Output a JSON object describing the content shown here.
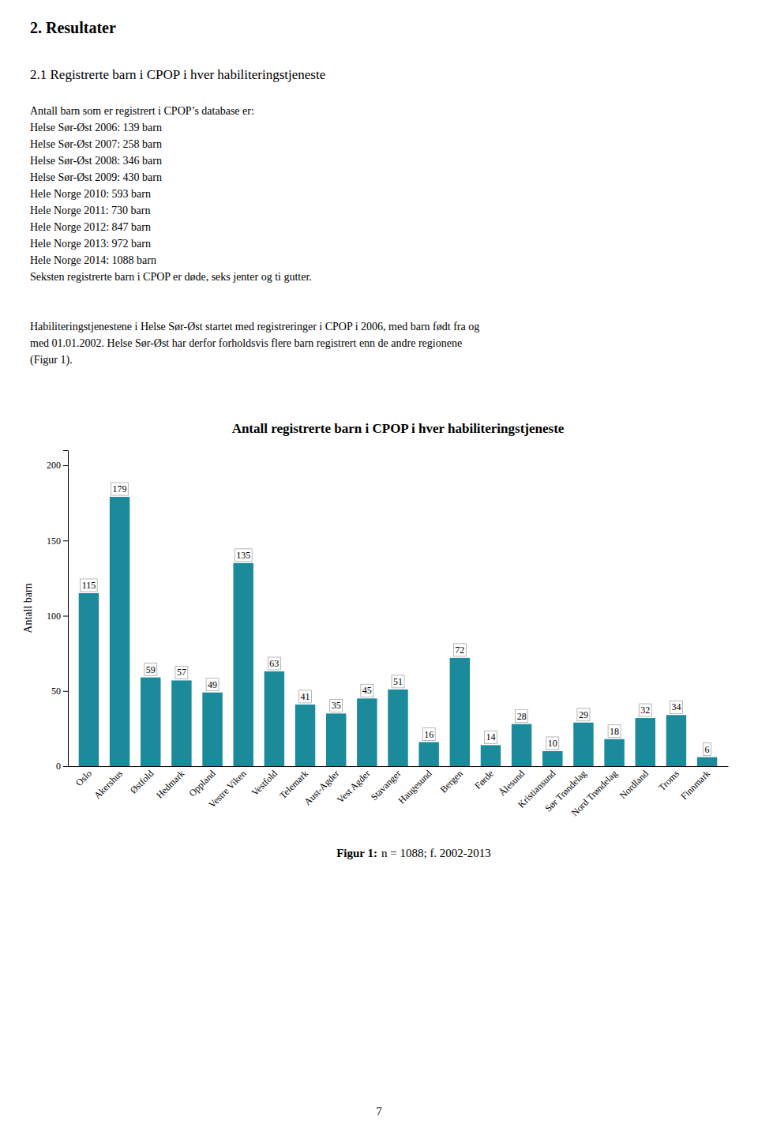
{
  "heading1": "2. Resultater",
  "heading2": "2.1 Registrerte barn i CPOP i hver habiliteringstjeneste",
  "body_text": [
    "Antall barn som er registrert i CPOP’s database er:",
    "Helse Sør-Øst 2006: 139 barn",
    "Helse Sør-Øst 2007: 258 barn",
    "Helse Sør-Øst 2008: 346 barn",
    "Helse Sør-Øst 2009: 430 barn",
    "Hele Norge 2010: 593 barn",
    "Hele Norge 2011: 730 barn",
    "Hele Norge 2012: 847 barn",
    "Hele Norge 2013: 972 barn",
    "Hele Norge 2014: 1088 barn",
    "Seksten registrerte barn i CPOP er døde, seks jenter og ti gutter."
  ],
  "body_text2": [
    "Habiliteringstjenestene i Helse Sør-Øst startet med registreringer i CPOP i 2006, med barn født fra og",
    "med 01.01.2002. Helse Sør-Øst har derfor forholdsvis flere barn registrert enn de andre regionene",
    "(Figur 1)."
  ],
  "caption_bold": "Figur 1:",
  "caption_normal": "n = 1088; f. 2002-2013",
  "page_number": "7",
  "chart_data": {
    "type": "bar",
    "title": "Antall registrerte barn i CPOP i hver habiliteringstjeneste",
    "ylabel": "Antall barn",
    "categories": [
      "Oslo",
      "Akershus",
      "Østfold",
      "Hedmark",
      "Oppland",
      "Vestre Viken",
      "Vestfold",
      "Telemark",
      "Aust-Agder",
      "Vest Agder",
      "Stavanger",
      "Haugesund",
      "Bergen",
      "Førde",
      "Ålesund",
      "Kristiansund",
      "Sør Trøndelag",
      "Nord Trøndelag",
      "Nordland",
      "Troms",
      "Finnmark"
    ],
    "values": [
      115,
      179,
      59,
      57,
      49,
      135,
      63,
      41,
      35,
      45,
      51,
      16,
      72,
      14,
      28,
      10,
      29,
      18,
      32,
      34,
      6
    ],
    "color": "#1b8a9a",
    "ylim": [
      0,
      210
    ],
    "yticks": [
      0,
      50,
      100,
      150,
      200
    ],
    "grid": false,
    "data_labels": true
  }
}
